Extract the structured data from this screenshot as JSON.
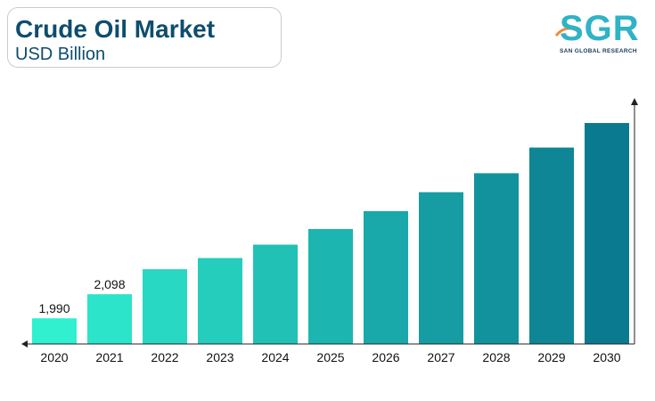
{
  "header": {
    "title": "Crude Oil Market",
    "subtitle": "USD Billion"
  },
  "logo": {
    "letters": "SGR",
    "tagline": "SAN GLOBAL RESEARCH"
  },
  "colors": {
    "title": "#0e4d6e",
    "bar_start": "#30f0d0",
    "bar_end": "#0a7a90",
    "axis": "#222222"
  },
  "chart_data": {
    "type": "bar",
    "title": "Crude Oil Market",
    "subtitle": "USD Billion",
    "categories": [
      "2020",
      "2021",
      "2022",
      "2023",
      "2024",
      "2025",
      "2026",
      "2027",
      "2028",
      "2029",
      "2030"
    ],
    "values": [
      1990,
      2098,
      2210,
      2260,
      2320,
      2390,
      2470,
      2555,
      2640,
      2755,
      2865
    ],
    "data_labels": [
      "1,990",
      "2,098",
      "",
      "",
      "",
      "",
      "",
      "",
      "",
      "",
      ""
    ],
    "xlabel": "",
    "ylabel": "",
    "ylim": [
      1875,
      2905
    ],
    "grid": false,
    "legend": "none"
  }
}
